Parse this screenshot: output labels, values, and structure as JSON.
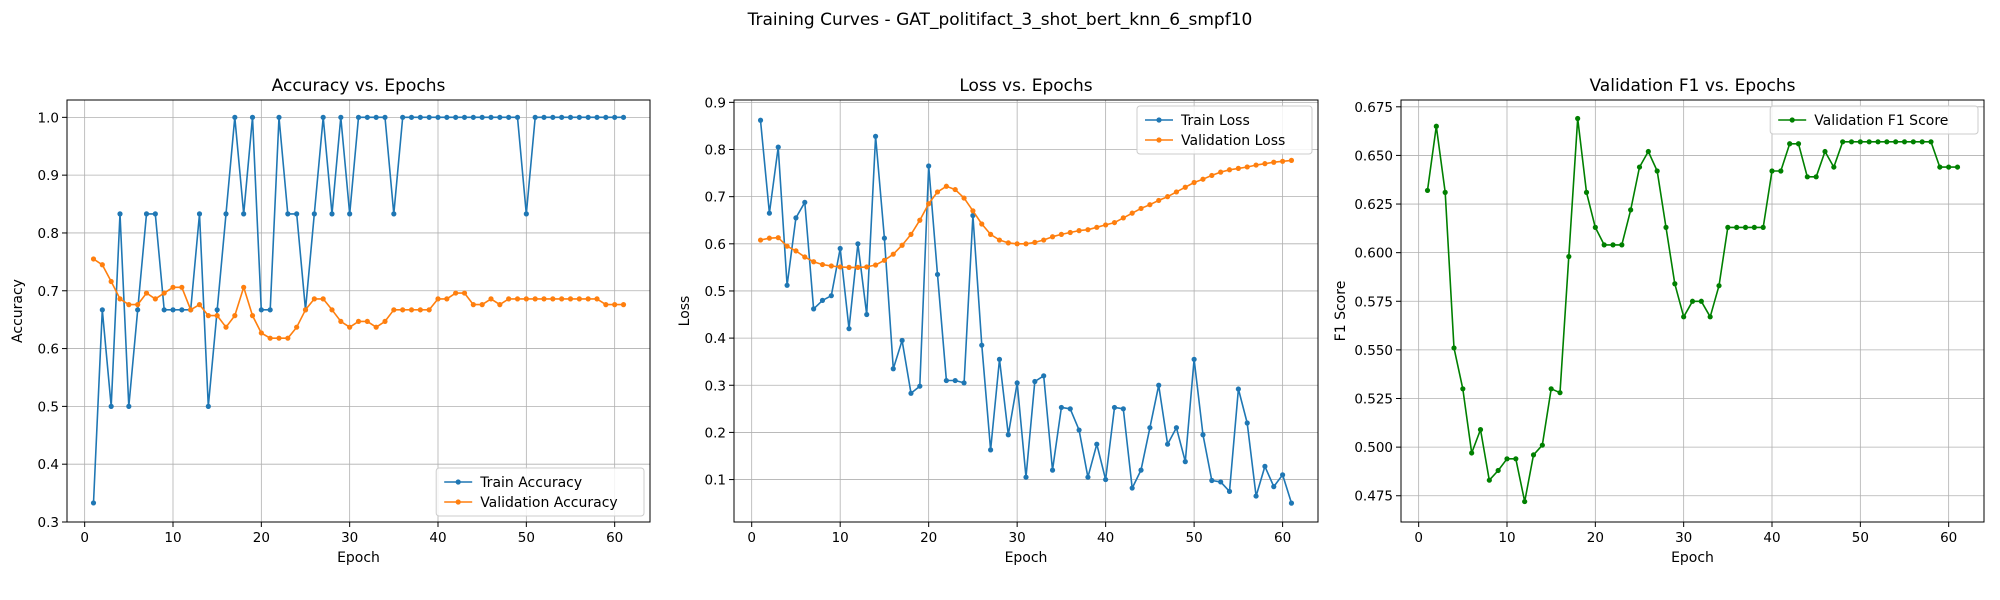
{
  "figure": {
    "suptitle": "Training Curves - GAT_politifact_3_shot_bert_knn_6_smpf10"
  },
  "colors": {
    "train": "#1f77b4",
    "validation": "#ff7f0e",
    "f1": "#008000",
    "grid": "#b0b0b0"
  },
  "chart_data": [
    {
      "type": "line",
      "title": "Accuracy vs. Epochs",
      "xlabel": "Epoch",
      "ylabel": "Accuracy",
      "xlim": [
        -2,
        64
      ],
      "ylim": [
        0.3,
        1.03
      ],
      "xticks": [
        0,
        10,
        20,
        30,
        40,
        50,
        60
      ],
      "yticks": [
        0.3,
        0.4,
        0.5,
        0.6,
        0.7,
        0.8,
        0.9,
        1.0
      ],
      "ytick_labels": [
        "0.3",
        "0.4",
        "0.5",
        "0.6",
        "0.7",
        "0.8",
        "0.9",
        "1.0"
      ],
      "grid": true,
      "legend_position": "lower right",
      "x": [
        1,
        2,
        3,
        4,
        5,
        6,
        7,
        8,
        9,
        10,
        11,
        12,
        13,
        14,
        15,
        16,
        17,
        18,
        19,
        20,
        21,
        22,
        23,
        24,
        25,
        26,
        27,
        28,
        29,
        30,
        31,
        32,
        33,
        34,
        35,
        36,
        37,
        38,
        39,
        40,
        41,
        42,
        43,
        44,
        45,
        46,
        47,
        48,
        49,
        50,
        51,
        52,
        53,
        54,
        55,
        56,
        57,
        58,
        59,
        60,
        61
      ],
      "series": [
        {
          "name": "Train Accuracy",
          "color": "#1f77b4",
          "values": [
            0.333,
            0.667,
            0.5,
            0.833,
            0.5,
            0.667,
            0.833,
            0.833,
            0.667,
            0.667,
            0.667,
            0.667,
            0.833,
            0.5,
            0.667,
            0.833,
            1.0,
            0.833,
            1.0,
            0.667,
            0.667,
            1.0,
            0.833,
            0.833,
            0.667,
            0.833,
            1.0,
            0.833,
            1.0,
            0.833,
            1.0,
            1.0,
            1.0,
            1.0,
            0.833,
            1.0,
            1.0,
            1.0,
            1.0,
            1.0,
            1.0,
            1.0,
            1.0,
            1.0,
            1.0,
            1.0,
            1.0,
            1.0,
            1.0,
            0.833,
            1.0,
            1.0,
            1.0,
            1.0,
            1.0,
            1.0,
            1.0,
            1.0,
            1.0,
            1.0,
            1.0
          ]
        },
        {
          "name": "Validation Accuracy",
          "color": "#ff7f0e",
          "values": [
            0.755,
            0.745,
            0.716,
            0.686,
            0.676,
            0.676,
            0.696,
            0.686,
            0.696,
            0.706,
            0.706,
            0.667,
            0.676,
            0.657,
            0.657,
            0.637,
            0.657,
            0.706,
            0.657,
            0.627,
            0.618,
            0.618,
            0.618,
            0.637,
            0.667,
            0.686,
            0.686,
            0.667,
            0.647,
            0.637,
            0.647,
            0.647,
            0.637,
            0.647,
            0.667,
            0.667,
            0.667,
            0.667,
            0.667,
            0.686,
            0.686,
            0.696,
            0.696,
            0.676,
            0.676,
            0.686,
            0.676,
            0.686,
            0.686,
            0.686,
            0.686,
            0.686,
            0.686,
            0.686,
            0.686,
            0.686,
            0.686,
            0.686,
            0.676,
            0.676,
            0.676
          ]
        }
      ]
    },
    {
      "type": "line",
      "title": "Loss vs. Epochs",
      "xlabel": "Epoch",
      "ylabel": "Loss",
      "xlim": [
        -2,
        64
      ],
      "ylim": [
        0.01,
        0.905
      ],
      "xticks": [
        0,
        10,
        20,
        30,
        40,
        50,
        60
      ],
      "yticks": [
        0.1,
        0.2,
        0.3,
        0.4,
        0.5,
        0.6,
        0.7,
        0.8,
        0.9
      ],
      "ytick_labels": [
        "0.1",
        "0.2",
        "0.3",
        "0.4",
        "0.5",
        "0.6",
        "0.7",
        "0.8",
        "0.9"
      ],
      "grid": true,
      "legend_position": "upper right",
      "x": [
        1,
        2,
        3,
        4,
        5,
        6,
        7,
        8,
        9,
        10,
        11,
        12,
        13,
        14,
        15,
        16,
        17,
        18,
        19,
        20,
        21,
        22,
        23,
        24,
        25,
        26,
        27,
        28,
        29,
        30,
        31,
        32,
        33,
        34,
        35,
        36,
        37,
        38,
        39,
        40,
        41,
        42,
        43,
        44,
        45,
        46,
        47,
        48,
        49,
        50,
        51,
        52,
        53,
        54,
        55,
        56,
        57,
        58,
        59,
        60,
        61
      ],
      "series": [
        {
          "name": "Train Loss",
          "color": "#1f77b4",
          "values": [
            0.862,
            0.665,
            0.805,
            0.512,
            0.655,
            0.688,
            0.462,
            0.48,
            0.49,
            0.59,
            0.42,
            0.6,
            0.45,
            0.828,
            0.612,
            0.335,
            0.395,
            0.283,
            0.298,
            0.765,
            0.535,
            0.31,
            0.31,
            0.305,
            0.66,
            0.385,
            0.163,
            0.355,
            0.195,
            0.305,
            0.105,
            0.308,
            0.32,
            0.12,
            0.253,
            0.25,
            0.205,
            0.105,
            0.175,
            0.1,
            0.253,
            0.25,
            0.082,
            0.12,
            0.21,
            0.3,
            0.175,
            0.21,
            0.138,
            0.355,
            0.195,
            0.098,
            0.095,
            0.075,
            0.292,
            0.22,
            0.065,
            0.128,
            0.085,
            0.11,
            0.05
          ]
        },
        {
          "name": "Validation Loss",
          "color": "#ff7f0e",
          "values": [
            0.608,
            0.612,
            0.613,
            0.595,
            0.585,
            0.572,
            0.562,
            0.556,
            0.553,
            0.551,
            0.55,
            0.55,
            0.551,
            0.555,
            0.565,
            0.578,
            0.597,
            0.62,
            0.65,
            0.685,
            0.71,
            0.722,
            0.715,
            0.697,
            0.67,
            0.642,
            0.62,
            0.608,
            0.602,
            0.6,
            0.6,
            0.603,
            0.608,
            0.615,
            0.62,
            0.624,
            0.628,
            0.63,
            0.635,
            0.64,
            0.645,
            0.655,
            0.665,
            0.675,
            0.683,
            0.692,
            0.7,
            0.71,
            0.72,
            0.73,
            0.737,
            0.745,
            0.752,
            0.757,
            0.76,
            0.763,
            0.767,
            0.77,
            0.773,
            0.775,
            0.777
          ]
        }
      ]
    },
    {
      "type": "line",
      "title": "Validation F1 vs. Epochs",
      "xlabel": "Epoch",
      "ylabel": "F1 Score",
      "xlim": [
        -2,
        64
      ],
      "ylim": [
        0.4615,
        0.6785
      ],
      "xticks": [
        0,
        10,
        20,
        30,
        40,
        50,
        60
      ],
      "yticks": [
        0.475,
        0.5,
        0.525,
        0.55,
        0.575,
        0.6,
        0.625,
        0.65,
        0.675
      ],
      "ytick_labels": [
        "0.475",
        "0.500",
        "0.525",
        "0.550",
        "0.575",
        "0.600",
        "0.625",
        "0.650",
        "0.675"
      ],
      "grid": true,
      "legend_position": "upper right",
      "x": [
        1,
        2,
        3,
        4,
        5,
        6,
        7,
        8,
        9,
        10,
        11,
        12,
        13,
        14,
        15,
        16,
        17,
        18,
        19,
        20,
        21,
        22,
        23,
        24,
        25,
        26,
        27,
        28,
        29,
        30,
        31,
        32,
        33,
        34,
        35,
        36,
        37,
        38,
        39,
        40,
        41,
        42,
        43,
        44,
        45,
        46,
        47,
        48,
        49,
        50,
        51,
        52,
        53,
        54,
        55,
        56,
        57,
        58,
        59,
        60,
        61
      ],
      "series": [
        {
          "name": "Validation F1 Score",
          "color": "#008000",
          "values": [
            0.632,
            0.665,
            0.631,
            0.551,
            0.53,
            0.497,
            0.509,
            0.483,
            0.488,
            0.494,
            0.494,
            0.472,
            0.496,
            0.501,
            0.53,
            0.528,
            0.598,
            0.669,
            0.631,
            0.613,
            0.604,
            0.604,
            0.604,
            0.622,
            0.644,
            0.652,
            0.642,
            0.613,
            0.584,
            0.567,
            0.575,
            0.575,
            0.567,
            0.583,
            0.613,
            0.613,
            0.613,
            0.613,
            0.613,
            0.642,
            0.642,
            0.656,
            0.656,
            0.639,
            0.639,
            0.652,
            0.644,
            0.657,
            0.657,
            0.657,
            0.657,
            0.657,
            0.657,
            0.657,
            0.657,
            0.657,
            0.657,
            0.657,
            0.644,
            0.644,
            0.644
          ]
        }
      ]
    }
  ]
}
